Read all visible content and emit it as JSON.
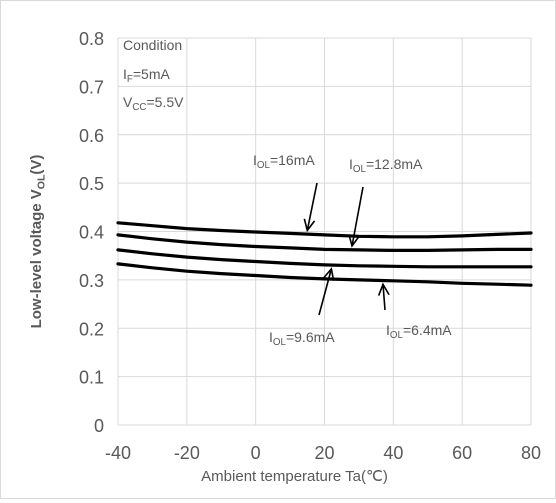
{
  "chart_data": {
    "type": "line",
    "title": "",
    "xlabel": "Ambient temperature Ta(℃)",
    "ylabel": {
      "main": "Low-level voltage V",
      "sub": "OL",
      "tail": "(V)"
    },
    "xlim": [
      -40,
      80
    ],
    "ylim": [
      0,
      0.8
    ],
    "xticks": [
      -40,
      -20,
      0,
      20,
      40,
      60,
      80
    ],
    "yticks": [
      0,
      0.1,
      0.2,
      0.3,
      0.4,
      0.5,
      0.6,
      0.7,
      0.8
    ],
    "xtick_labels": [
      "-40",
      "-20",
      "0",
      "20",
      "40",
      "60",
      "80"
    ],
    "ytick_labels": [
      "0",
      "0.1",
      "0.2",
      "0.3",
      "0.4",
      "0.5",
      "0.6",
      "0.7",
      "0.8"
    ],
    "grid": {
      "horizontal": true,
      "vertical": true
    },
    "condition": {
      "heading": "Condition",
      "lines": [
        {
          "main": "I",
          "sub": "F",
          "tail": "=5mA"
        },
        {
          "main": "V",
          "sub": "CC",
          "tail": "=5.5V"
        }
      ]
    },
    "x": [
      -40,
      -30,
      -20,
      -10,
      0,
      10,
      20,
      30,
      40,
      50,
      60,
      70,
      80
    ],
    "series": [
      {
        "name": {
          "main": "I",
          "sub": "OL",
          "tail": "=16mA"
        },
        "values": [
          0.418,
          0.412,
          0.406,
          0.402,
          0.399,
          0.396,
          0.393,
          0.39,
          0.389,
          0.389,
          0.391,
          0.394,
          0.397
        ],
        "arrow_to": [
          15,
          0.394
        ]
      },
      {
        "name": {
          "main": "I",
          "sub": "OL",
          "tail": "=12.8mA"
        },
        "values": [
          0.393,
          0.385,
          0.378,
          0.373,
          0.369,
          0.366,
          0.363,
          0.362,
          0.361,
          0.361,
          0.362,
          0.363,
          0.363
        ],
        "arrow_to": [
          28,
          0.362
        ]
      },
      {
        "name": {
          "main": "I",
          "sub": "OL",
          "tail": "=9.6mA"
        },
        "values": [
          0.362,
          0.354,
          0.347,
          0.342,
          0.338,
          0.334,
          0.331,
          0.329,
          0.328,
          0.327,
          0.327,
          0.327,
          0.327
        ],
        "arrow_to": [
          22,
          0.331
        ]
      },
      {
        "name": {
          "main": "I",
          "sub": "OL",
          "tail": "=6.4mA"
        },
        "values": [
          0.333,
          0.325,
          0.318,
          0.313,
          0.309,
          0.305,
          0.302,
          0.3,
          0.298,
          0.296,
          0.293,
          0.291,
          0.289
        ],
        "arrow_to": [
          37,
          0.299
        ]
      }
    ],
    "line_color": "#000000",
    "grid_color": "#d9d9d9",
    "text_color": "#595959"
  }
}
